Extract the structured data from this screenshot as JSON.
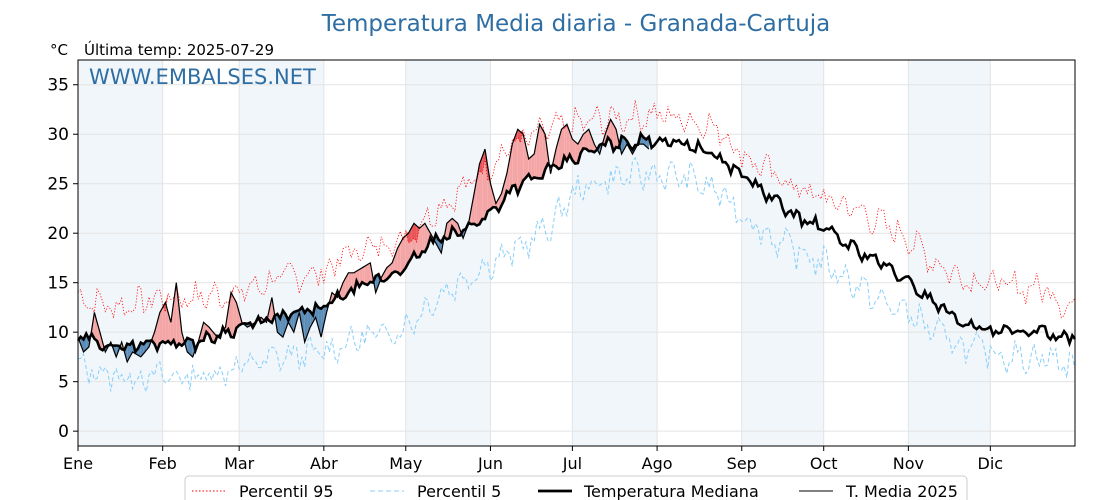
{
  "chart_data": {
    "type": "line",
    "title": "Temperatura Media diaria - Granada-Cartuja",
    "unit_label": "°C",
    "subtitle": "Última temp: 2025-07-29",
    "watermark": "WWW.EMBALSES.NET",
    "ylim": [
      -1.5,
      37.5
    ],
    "y_ticks": [
      0,
      5,
      10,
      15,
      20,
      25,
      30,
      35
    ],
    "x_ticks": [
      "Ene",
      "Feb",
      "Mar",
      "Abr",
      "May",
      "Jun",
      "Jul",
      "Ago",
      "Sep",
      "Oct",
      "Nov",
      "Dic"
    ],
    "x_tick_days": [
      1,
      32,
      60,
      91,
      121,
      152,
      182,
      213,
      244,
      274,
      305,
      335
    ],
    "xlim_days": [
      1,
      366
    ],
    "grid": true,
    "legend_position": "bottom-center",
    "series_defs": [
      {
        "key": "p95",
        "name": "Percentil 95",
        "color": "#ff0000",
        "style": "dotted"
      },
      {
        "key": "p5",
        "name": "Percentil 5",
        "color": "#87cefa",
        "style": "dashed"
      },
      {
        "key": "median",
        "name": "Temperatura Mediana",
        "color": "#000000",
        "style": "solid-thick"
      },
      {
        "key": "t2025",
        "name": "T. Media 2025",
        "color": "#000000",
        "style": "solid"
      }
    ],
    "fill_colors": {
      "above_median": "#f4a6a6",
      "above_p95": "#e8565a",
      "below_median": "#5b8db8",
      "below_p5": "#1f5a8c"
    },
    "p95_anchors": [
      [
        1,
        13.5
      ],
      [
        15,
        12.5
      ],
      [
        32,
        13.5
      ],
      [
        45,
        13.5
      ],
      [
        60,
        14
      ],
      [
        75,
        15.5
      ],
      [
        91,
        16
      ],
      [
        100,
        18
      ],
      [
        121,
        19.5
      ],
      [
        130,
        22
      ],
      [
        140,
        24
      ],
      [
        152,
        27
      ],
      [
        160,
        29
      ],
      [
        175,
        30.5
      ],
      [
        182,
        31
      ],
      [
        195,
        31.5
      ],
      [
        213,
        32
      ],
      [
        225,
        31.5
      ],
      [
        236,
        30.5
      ],
      [
        244,
        28
      ],
      [
        255,
        26
      ],
      [
        265,
        24.5
      ],
      [
        274,
        23.5
      ],
      [
        285,
        22.5
      ],
      [
        295,
        21
      ],
      [
        305,
        19.5
      ],
      [
        315,
        17
      ],
      [
        325,
        15.5
      ],
      [
        335,
        15
      ],
      [
        345,
        14.5
      ],
      [
        355,
        14.5
      ],
      [
        366,
        12
      ]
    ],
    "p5_anchors": [
      [
        1,
        6.5
      ],
      [
        15,
        5.5
      ],
      [
        32,
        5.5
      ],
      [
        45,
        5.5
      ],
      [
        60,
        6.5
      ],
      [
        75,
        7.5
      ],
      [
        91,
        8
      ],
      [
        100,
        9
      ],
      [
        121,
        10.5
      ],
      [
        130,
        13
      ],
      [
        140,
        15
      ],
      [
        152,
        17
      ],
      [
        160,
        18
      ],
      [
        175,
        21
      ],
      [
        182,
        24
      ],
      [
        195,
        25.5
      ],
      [
        213,
        26
      ],
      [
        225,
        25.5
      ],
      [
        236,
        24
      ],
      [
        244,
        22
      ],
      [
        255,
        19.5
      ],
      [
        265,
        18
      ],
      [
        274,
        17
      ],
      [
        285,
        15
      ],
      [
        295,
        13
      ],
      [
        305,
        12
      ],
      [
        315,
        10
      ],
      [
        325,
        8.5
      ],
      [
        335,
        8
      ],
      [
        345,
        7.5
      ],
      [
        355,
        7.5
      ],
      [
        366,
        6.5
      ]
    ],
    "median_anchors": [
      [
        1,
        9.5
      ],
      [
        15,
        8.5
      ],
      [
        32,
        9
      ],
      [
        45,
        9
      ],
      [
        60,
        10.5
      ],
      [
        75,
        11.5
      ],
      [
        91,
        12.5
      ],
      [
        100,
        14
      ],
      [
        121,
        16.5
      ],
      [
        130,
        19
      ],
      [
        140,
        20
      ],
      [
        152,
        22
      ],
      [
        160,
        24.5
      ],
      [
        175,
        26.5
      ],
      [
        182,
        27.5
      ],
      [
        195,
        29
      ],
      [
        213,
        29.5
      ],
      [
        225,
        29
      ],
      [
        236,
        27.5
      ],
      [
        244,
        26
      ],
      [
        255,
        23.5
      ],
      [
        265,
        21.5
      ],
      [
        274,
        20.5
      ],
      [
        285,
        18.5
      ],
      [
        295,
        17
      ],
      [
        305,
        15
      ],
      [
        315,
        13
      ],
      [
        325,
        11
      ],
      [
        335,
        10
      ],
      [
        345,
        10
      ],
      [
        355,
        10
      ],
      [
        366,
        9.5
      ]
    ],
    "t2025_anchors": [
      [
        1,
        9.5
      ],
      [
        3,
        8
      ],
      [
        5,
        8.5
      ],
      [
        7,
        12
      ],
      [
        9,
        10
      ],
      [
        11,
        8
      ],
      [
        13,
        9
      ],
      [
        15,
        7.5
      ],
      [
        17,
        9
      ],
      [
        19,
        7
      ],
      [
        21,
        8
      ],
      [
        24,
        7.5
      ],
      [
        27,
        8.5
      ],
      [
        29,
        10
      ],
      [
        31,
        12
      ],
      [
        33,
        13
      ],
      [
        35,
        11
      ],
      [
        37,
        15
      ],
      [
        39,
        10
      ],
      [
        41,
        8
      ],
      [
        43,
        7.5
      ],
      [
        45,
        9
      ],
      [
        47,
        11
      ],
      [
        49,
        10.5
      ],
      [
        52,
        9.5
      ],
      [
        55,
        10.5
      ],
      [
        57,
        14
      ],
      [
        59,
        13
      ],
      [
        61,
        11
      ],
      [
        63,
        10.5
      ],
      [
        66,
        11
      ],
      [
        68,
        11.5
      ],
      [
        70,
        11
      ],
      [
        72,
        13.5
      ],
      [
        74,
        10
      ],
      [
        76,
        9.5
      ],
      [
        78,
        11
      ],
      [
        80,
        10
      ],
      [
        82,
        12
      ],
      [
        84,
        9
      ],
      [
        86,
        10.5
      ],
      [
        88,
        11.5
      ],
      [
        90,
        9.5
      ],
      [
        92,
        12
      ],
      [
        94,
        14
      ],
      [
        96,
        13.5
      ],
      [
        98,
        15
      ],
      [
        100,
        16
      ],
      [
        102,
        16
      ],
      [
        105,
        16.5
      ],
      [
        108,
        17
      ],
      [
        110,
        14
      ],
      [
        112,
        15.5
      ],
      [
        114,
        16.5
      ],
      [
        116,
        17
      ],
      [
        118,
        18.5
      ],
      [
        120,
        19.5
      ],
      [
        122,
        20
      ],
      [
        124,
        21
      ],
      [
        126,
        20.5
      ],
      [
        128,
        21
      ],
      [
        130,
        20
      ],
      [
        132,
        19
      ],
      [
        134,
        18
      ],
      [
        136,
        21
      ],
      [
        138,
        21.5
      ],
      [
        140,
        21
      ],
      [
        142,
        19.5
      ],
      [
        144,
        21
      ],
      [
        146,
        24
      ],
      [
        148,
        27
      ],
      [
        150,
        28.5
      ],
      [
        152,
        25
      ],
      [
        154,
        23
      ],
      [
        156,
        24
      ],
      [
        158,
        26
      ],
      [
        160,
        29
      ],
      [
        162,
        30.5
      ],
      [
        164,
        30
      ],
      [
        166,
        27.5
      ],
      [
        168,
        28
      ],
      [
        170,
        31
      ],
      [
        172,
        30
      ],
      [
        174,
        26
      ],
      [
        176,
        28.5
      ],
      [
        178,
        30.5
      ],
      [
        180,
        31
      ],
      [
        182,
        29.5
      ],
      [
        184,
        29
      ],
      [
        186,
        30
      ],
      [
        188,
        30.5
      ],
      [
        190,
        29
      ],
      [
        192,
        28
      ],
      [
        194,
        30
      ],
      [
        196,
        31.5
      ],
      [
        198,
        30.5
      ],
      [
        200,
        28
      ],
      [
        202,
        29
      ],
      [
        204,
        28
      ],
      [
        206,
        29
      ],
      [
        208,
        29
      ],
      [
        210,
        28.5
      ]
    ],
    "volatile_anchors_note": ""
  },
  "legend": {
    "p95": "Percentil 95",
    "p5": "Percentil 5",
    "median": "Temperatura Mediana",
    "t2025": "T. Media 2025"
  }
}
